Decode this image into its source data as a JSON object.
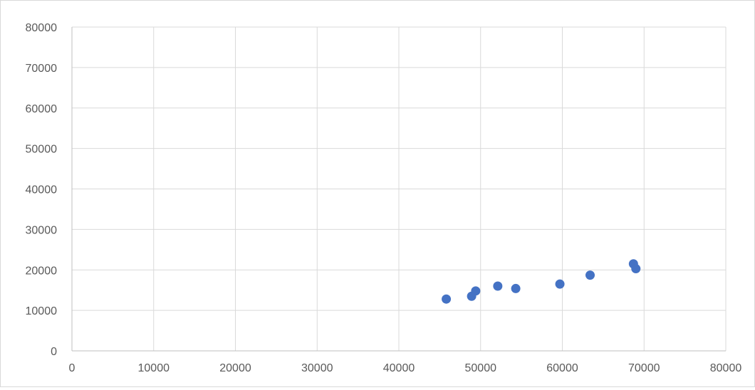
{
  "chart_data": {
    "type": "scatter",
    "title": "",
    "xlabel": "",
    "ylabel": "",
    "xlim": [
      0,
      80000
    ],
    "ylim": [
      0,
      80000
    ],
    "x_ticks": [
      0,
      10000,
      20000,
      30000,
      40000,
      50000,
      60000,
      70000,
      80000
    ],
    "y_ticks": [
      0,
      10000,
      20000,
      30000,
      40000,
      50000,
      60000,
      70000,
      80000
    ],
    "x_tick_labels": [
      "0",
      "10000",
      "20000",
      "30000",
      "40000",
      "50000",
      "60000",
      "70000",
      "80000"
    ],
    "y_tick_labels": [
      "0",
      "10000",
      "20000",
      "30000",
      "40000",
      "50000",
      "60000",
      "70000",
      "80000"
    ],
    "grid": "both",
    "legend": "none",
    "series": [
      {
        "color": "#4472c4",
        "points": [
          {
            "x": 45800,
            "y": 12800
          },
          {
            "x": 48900,
            "y": 13500
          },
          {
            "x": 49400,
            "y": 14800
          },
          {
            "x": 52100,
            "y": 16000
          },
          {
            "x": 54300,
            "y": 15400
          },
          {
            "x": 59700,
            "y": 16500
          },
          {
            "x": 63400,
            "y": 18700
          },
          {
            "x": 68700,
            "y": 21500
          },
          {
            "x": 69000,
            "y": 20300
          }
        ]
      }
    ],
    "colors": {
      "grid": "#d9d9d9",
      "axis": "#bfbfbf",
      "tick_text": "#595959",
      "marker": "#4472c4"
    }
  }
}
